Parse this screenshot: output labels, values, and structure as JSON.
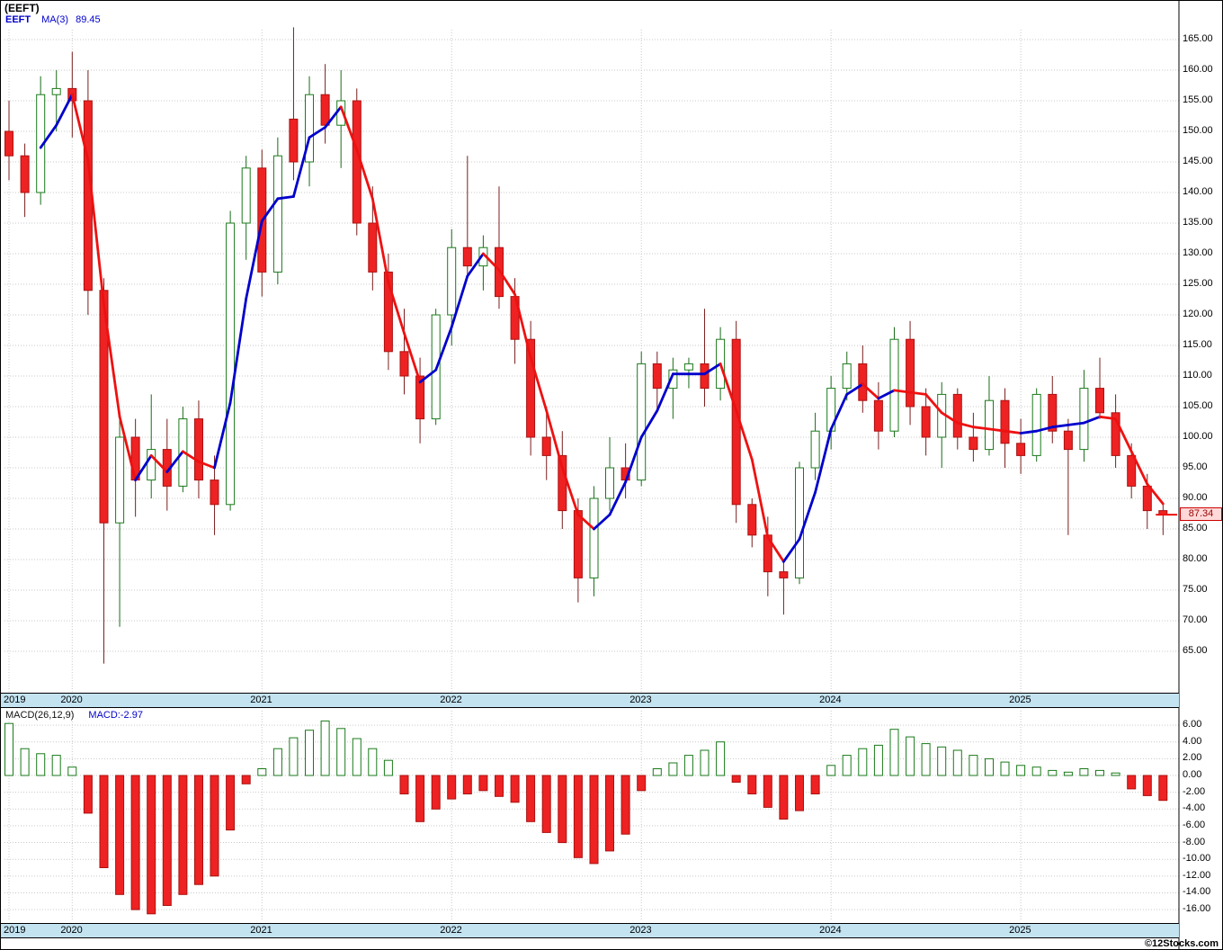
{
  "header": {
    "title": "(EEFT)"
  },
  "legend": {
    "symbol": "EEFT",
    "ma_label": "MA(3)",
    "ma_value": "89.45"
  },
  "macd_legend": {
    "label": "MACD(26,12,9)",
    "value": "MACD:-2.97"
  },
  "quote": {
    "last": "87.34"
  },
  "footer": {
    "copyright": "©12Stocks.com"
  },
  "colors": {
    "up_stroke": "#1a7a1a",
    "up_fill": "#ffffff",
    "down_fill": "#ee2222",
    "down_stroke": "#aa1111",
    "down_wick": "#7a1f1f",
    "up_wick": "#1a6b1a",
    "ma_rising": "#0000cc",
    "ma_falling": "#ee1111",
    "band_bg": "#c3e3f1",
    "tag_bg": "#ffd9d9",
    "tag_border": "#cc0000",
    "legend_blue": "#0000cc",
    "grid": "#c9c9c9"
  },
  "chart_data": [
    {
      "type": "candlestick",
      "symbol": "EEFT",
      "interval": "monthly",
      "ma_period": 3,
      "last_price": 87.34,
      "ylim": [
        60,
        168
      ],
      "y_ticks": [
        165,
        160,
        155,
        150,
        145,
        140,
        135,
        130,
        125,
        120,
        115,
        110,
        105,
        100,
        95,
        90,
        85,
        80,
        75,
        70,
        65
      ],
      "year_ticks": [
        {
          "label": "2019",
          "index": 0
        },
        {
          "label": "2020",
          "index": 4
        },
        {
          "label": "2021",
          "index": 16
        },
        {
          "label": "2022",
          "index": 28
        },
        {
          "label": "2023",
          "index": 40
        },
        {
          "label": "2024",
          "index": 52
        },
        {
          "label": "2025",
          "index": 64
        }
      ],
      "months": [
        "2019-09",
        "2019-10",
        "2019-11",
        "2019-12",
        "2020-01",
        "2020-02",
        "2020-03",
        "2020-04",
        "2020-05",
        "2020-06",
        "2020-07",
        "2020-08",
        "2020-09",
        "2020-10",
        "2020-11",
        "2020-12",
        "2021-01",
        "2021-02",
        "2021-03",
        "2021-04",
        "2021-05",
        "2021-06",
        "2021-07",
        "2021-08",
        "2021-09",
        "2021-10",
        "2021-11",
        "2021-12",
        "2022-01",
        "2022-02",
        "2022-03",
        "2022-04",
        "2022-05",
        "2022-06",
        "2022-07",
        "2022-08",
        "2022-09",
        "2022-10",
        "2022-11",
        "2022-12",
        "2023-01",
        "2023-02",
        "2023-03",
        "2023-04",
        "2023-05",
        "2023-06",
        "2023-07",
        "2023-08",
        "2023-09",
        "2023-10",
        "2023-11",
        "2023-12",
        "2024-01",
        "2024-02",
        "2024-03",
        "2024-04",
        "2024-05",
        "2024-06",
        "2024-07",
        "2024-08",
        "2024-09",
        "2024-10",
        "2024-11",
        "2024-12",
        "2025-01",
        "2025-02",
        "2025-03",
        "2025-04",
        "2025-05",
        "2025-06",
        "2025-07",
        "2025-08",
        "2025-09",
        "2025-10"
      ],
      "open": [
        150,
        146,
        140,
        156,
        157,
        155,
        124,
        86,
        100,
        93,
        98,
        92,
        103,
        93,
        89,
        135,
        144,
        127,
        152,
        145,
        156,
        151,
        155,
        135,
        127,
        114,
        110,
        103,
        120,
        131,
        128,
        131,
        123,
        116,
        100,
        97,
        88,
        77,
        90,
        95,
        93,
        112,
        108,
        111,
        112,
        108,
        116,
        89,
        84,
        78,
        77,
        95,
        101,
        108,
        112,
        106,
        101,
        116,
        105,
        100,
        107,
        100,
        98,
        106,
        99,
        97,
        107,
        101,
        98,
        108,
        104,
        97,
        92,
        88
      ],
      "high": [
        155,
        148,
        159,
        160,
        163,
        160,
        126,
        104,
        103,
        107,
        103,
        105,
        106,
        97,
        137,
        146,
        147,
        149,
        167,
        159,
        161,
        160,
        157,
        141,
        130,
        121,
        113,
        121,
        134,
        146,
        133,
        141,
        126,
        119,
        105,
        101,
        90,
        92,
        100,
        99,
        114,
        114,
        113,
        113,
        121,
        118,
        119,
        90,
        87,
        80,
        96,
        104,
        110,
        114,
        115,
        109,
        118,
        119,
        108,
        109,
        108,
        104,
        110,
        108,
        103,
        108,
        110,
        103,
        111,
        113,
        107,
        99,
        94,
        89
      ],
      "low": [
        142,
        136,
        138,
        150,
        149,
        120,
        63,
        69,
        87,
        90,
        88,
        91,
        90,
        84,
        88,
        129,
        123,
        125,
        142,
        141,
        148,
        144,
        133,
        124,
        111,
        107,
        99,
        102,
        115,
        126,
        124,
        121,
        112,
        97,
        93,
        85,
        73,
        74,
        88,
        90,
        92,
        104,
        103,
        108,
        105,
        106,
        86,
        82,
        74,
        71,
        76,
        93,
        98,
        106,
        104,
        98,
        100,
        102,
        97,
        95,
        98,
        96,
        97,
        95,
        94,
        96,
        99,
        84,
        96,
        103,
        95,
        90,
        85,
        84
      ],
      "close": [
        146,
        140,
        156,
        157,
        155,
        124,
        86,
        100,
        93,
        98,
        92,
        103,
        93,
        89,
        135,
        144,
        127,
        146,
        145,
        156,
        151,
        155,
        135,
        127,
        114,
        110,
        103,
        120,
        131,
        128,
        131,
        123,
        116,
        100,
        97,
        88,
        77,
        90,
        95,
        93,
        112,
        108,
        111,
        112,
        108,
        116,
        89,
        84,
        78,
        77,
        95,
        101,
        108,
        112,
        106,
        101,
        116,
        105,
        100,
        107,
        100,
        98,
        106,
        99,
        97,
        107,
        101,
        98,
        108,
        104,
        97,
        92,
        88,
        87.34
      ]
    },
    {
      "type": "bar",
      "name": "MACD(26,12,9) histogram",
      "current": -2.97,
      "ylim": [
        -17.5,
        7
      ],
      "y_ticks": [
        6,
        4,
        2,
        0,
        -2,
        -4,
        -6,
        -8,
        -10,
        -12,
        -14,
        -16
      ],
      "values": [
        6.2,
        3.2,
        2.6,
        2.4,
        1.0,
        -4.5,
        -11.0,
        -14.2,
        -16.0,
        -16.5,
        -15.5,
        -14.2,
        -13.0,
        -12.0,
        -6.5,
        -1.0,
        0.8,
        3.2,
        4.5,
        5.4,
        6.5,
        5.6,
        4.4,
        3.2,
        1.8,
        -2.2,
        -5.5,
        -4.0,
        -2.8,
        -2.2,
        -1.8,
        -2.5,
        -3.2,
        -5.5,
        -6.8,
        -8.0,
        -9.8,
        -10.5,
        -9.0,
        -7.0,
        -1.8,
        0.8,
        1.5,
        2.4,
        3.0,
        4.0,
        -0.8,
        -2.2,
        -3.8,
        -5.2,
        -4.2,
        -2.2,
        1.2,
        2.4,
        3.2,
        3.6,
        5.5,
        4.6,
        3.8,
        3.4,
        3.0,
        2.4,
        2.0,
        1.6,
        1.2,
        1.0,
        0.6,
        0.4,
        0.8,
        0.6,
        0.3,
        -1.6,
        -2.4,
        -2.97
      ]
    }
  ]
}
